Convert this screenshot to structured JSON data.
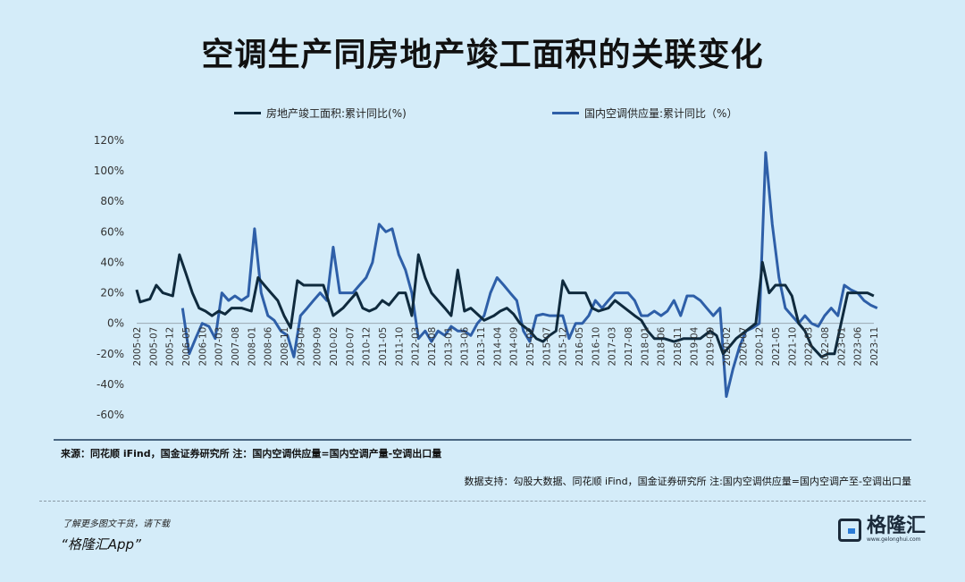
{
  "page_title": "空调生产同房地产竣工面积的关联变化",
  "source_note": "来源：同花顺 iFind，国金证券研究所 注：国内空调供应量=国内空调产量-空调出口量",
  "data_support": "数据支持：勾股大数据、同花顺 iFind，国金证券研究所 注:国内空调供应量=国内空调产至-空调出口量",
  "promo_line1": "了解更多图文干货，请下载",
  "promo_line2": "“格隆汇App”",
  "logo_text": "格隆汇",
  "logo_url": "www.gelonghui.com",
  "colors": {
    "series1": "#0f2a3d",
    "series2": "#2e5fa8",
    "background": "#d4ecf9"
  },
  "chart_data": {
    "type": "line",
    "title": "空调生产同房地产竣工面积的关联变化",
    "ylim": [
      -0.6,
      1.2
    ],
    "y_ticks": [
      "120%",
      "100%",
      "80%",
      "60%",
      "40%",
      "20%",
      "0%",
      "-20%",
      "-40%",
      "-60%"
    ],
    "x_tick_labels": [
      "2005-02",
      "2005-07",
      "2005-12",
      "2006-05",
      "2006-10",
      "2007-03",
      "2007-08",
      "2008-01",
      "2008-06",
      "2008-11",
      "2009-04",
      "2009-09",
      "2010-02",
      "2010-07",
      "2010-12",
      "2011-05",
      "2011-10",
      "2012-03",
      "2012-08",
      "2013-01",
      "2013-06",
      "2013-11",
      "2014-04",
      "2014-09",
      "2015-02",
      "2015-07",
      "2015-12",
      "2016-05",
      "2016-10",
      "2017-03",
      "2017-08",
      "2018-01",
      "2018-06",
      "2018-11",
      "2019-04",
      "2019-09",
      "2020-02",
      "2020-07",
      "2020-12",
      "2021-05",
      "2021-10",
      "2022-03",
      "2022-08",
      "2023-01",
      "2023-06",
      "2023-11"
    ],
    "legend_position": "top",
    "series": [
      {
        "name": "房地产竣工面积:累计同比(%)",
        "points": [
          [
            2005.08,
            0.22
          ],
          [
            2005.17,
            0.14
          ],
          [
            2005.42,
            0.16
          ],
          [
            2005.58,
            0.25
          ],
          [
            2005.75,
            0.2
          ],
          [
            2006.0,
            0.18
          ],
          [
            2006.17,
            0.45
          ],
          [
            2006.33,
            0.33
          ],
          [
            2006.5,
            0.2
          ],
          [
            2006.67,
            0.1
          ],
          [
            2006.83,
            0.08
          ],
          [
            2007.0,
            0.05
          ],
          [
            2007.17,
            0.08
          ],
          [
            2007.33,
            0.06
          ],
          [
            2007.5,
            0.1
          ],
          [
            2007.75,
            0.1
          ],
          [
            2008.0,
            0.08
          ],
          [
            2008.17,
            0.3
          ],
          [
            2008.33,
            0.25
          ],
          [
            2008.5,
            0.2
          ],
          [
            2008.67,
            0.15
          ],
          [
            2008.83,
            0.05
          ],
          [
            2009.0,
            -0.03
          ],
          [
            2009.17,
            0.28
          ],
          [
            2009.33,
            0.25
          ],
          [
            2009.5,
            0.25
          ],
          [
            2009.67,
            0.25
          ],
          [
            2009.83,
            0.25
          ],
          [
            2010.08,
            0.05
          ],
          [
            2010.33,
            0.1
          ],
          [
            2010.5,
            0.15
          ],
          [
            2010.67,
            0.2
          ],
          [
            2010.83,
            0.1
          ],
          [
            2011.0,
            0.08
          ],
          [
            2011.17,
            0.1
          ],
          [
            2011.33,
            0.15
          ],
          [
            2011.5,
            0.12
          ],
          [
            2011.75,
            0.2
          ],
          [
            2011.92,
            0.2
          ],
          [
            2012.08,
            0.05
          ],
          [
            2012.25,
            0.45
          ],
          [
            2012.42,
            0.3
          ],
          [
            2012.58,
            0.2
          ],
          [
            2012.75,
            0.15
          ],
          [
            2012.92,
            0.1
          ],
          [
            2013.08,
            0.05
          ],
          [
            2013.25,
            0.35
          ],
          [
            2013.42,
            0.08
          ],
          [
            2013.58,
            0.1
          ],
          [
            2013.75,
            0.06
          ],
          [
            2013.92,
            0.02
          ],
          [
            2014.17,
            0.05
          ],
          [
            2014.33,
            0.08
          ],
          [
            2014.5,
            0.1
          ],
          [
            2014.67,
            0.06
          ],
          [
            2014.83,
            0.0
          ],
          [
            2015.08,
            -0.05
          ],
          [
            2015.25,
            -0.1
          ],
          [
            2015.42,
            -0.12
          ],
          [
            2015.58,
            -0.08
          ],
          [
            2015.75,
            -0.05
          ],
          [
            2015.92,
            0.28
          ],
          [
            2016.08,
            0.2
          ],
          [
            2016.25,
            0.2
          ],
          [
            2016.5,
            0.2
          ],
          [
            2016.67,
            0.1
          ],
          [
            2016.83,
            0.08
          ],
          [
            2017.08,
            0.1
          ],
          [
            2017.25,
            0.15
          ],
          [
            2017.5,
            0.1
          ],
          [
            2017.75,
            0.05
          ],
          [
            2017.92,
            0.02
          ],
          [
            2018.08,
            -0.05
          ],
          [
            2018.25,
            -0.1
          ],
          [
            2018.5,
            -0.1
          ],
          [
            2018.75,
            -0.12
          ],
          [
            2019.0,
            -0.1
          ],
          [
            2019.17,
            -0.1
          ],
          [
            2019.42,
            -0.1
          ],
          [
            2019.67,
            -0.05
          ],
          [
            2019.83,
            -0.08
          ],
          [
            2020.0,
            -0.2
          ],
          [
            2020.17,
            -0.15
          ],
          [
            2020.33,
            -0.1
          ],
          [
            2020.58,
            -0.05
          ],
          [
            2020.83,
            0.0
          ],
          [
            2021.0,
            0.4
          ],
          [
            2021.17,
            0.2
          ],
          [
            2021.33,
            0.25
          ],
          [
            2021.58,
            0.25
          ],
          [
            2021.75,
            0.18
          ],
          [
            2021.92,
            0.0
          ],
          [
            2022.08,
            -0.05
          ],
          [
            2022.25,
            -0.15
          ],
          [
            2022.5,
            -0.22
          ],
          [
            2022.67,
            -0.2
          ],
          [
            2022.83,
            -0.2
          ],
          [
            2023.0,
            0.0
          ],
          [
            2023.17,
            0.2
          ],
          [
            2023.42,
            0.2
          ],
          [
            2023.67,
            0.2
          ],
          [
            2023.83,
            0.18
          ]
        ]
      },
      {
        "name": "国内空调供应量:累计同比（%）",
        "points": [
          [
            2006.25,
            0.1
          ],
          [
            2006.42,
            -0.2
          ],
          [
            2006.58,
            -0.1
          ],
          [
            2006.75,
            0.0
          ],
          [
            2006.92,
            -0.02
          ],
          [
            2007.08,
            -0.1
          ],
          [
            2007.25,
            0.2
          ],
          [
            2007.42,
            0.15
          ],
          [
            2007.58,
            0.18
          ],
          [
            2007.75,
            0.15
          ],
          [
            2007.92,
            0.18
          ],
          [
            2008.08,
            0.62
          ],
          [
            2008.25,
            0.2
          ],
          [
            2008.42,
            0.05
          ],
          [
            2008.58,
            0.02
          ],
          [
            2008.75,
            -0.05
          ],
          [
            2008.92,
            -0.08
          ],
          [
            2009.08,
            -0.22
          ],
          [
            2009.25,
            0.05
          ],
          [
            2009.42,
            0.1
          ],
          [
            2009.58,
            0.15
          ],
          [
            2009.75,
            0.2
          ],
          [
            2009.92,
            0.15
          ],
          [
            2010.08,
            0.5
          ],
          [
            2010.25,
            0.2
          ],
          [
            2010.42,
            0.2
          ],
          [
            2010.58,
            0.2
          ],
          [
            2010.75,
            0.25
          ],
          [
            2010.92,
            0.3
          ],
          [
            2011.08,
            0.4
          ],
          [
            2011.25,
            0.65
          ],
          [
            2011.42,
            0.6
          ],
          [
            2011.58,
            0.62
          ],
          [
            2011.75,
            0.45
          ],
          [
            2011.92,
            0.35
          ],
          [
            2012.08,
            0.2
          ],
          [
            2012.25,
            -0.1
          ],
          [
            2012.42,
            -0.05
          ],
          [
            2012.58,
            -0.12
          ],
          [
            2012.75,
            -0.05
          ],
          [
            2012.92,
            -0.08
          ],
          [
            2013.08,
            -0.02
          ],
          [
            2013.25,
            -0.05
          ],
          [
            2013.42,
            -0.05
          ],
          [
            2013.58,
            -0.08
          ],
          [
            2013.75,
            0.0
          ],
          [
            2013.92,
            0.05
          ],
          [
            2014.08,
            0.2
          ],
          [
            2014.25,
            0.3
          ],
          [
            2014.42,
            0.25
          ],
          [
            2014.58,
            0.2
          ],
          [
            2014.75,
            0.15
          ],
          [
            2014.92,
            -0.05
          ],
          [
            2015.08,
            -0.12
          ],
          [
            2015.25,
            0.05
          ],
          [
            2015.42,
            0.06
          ],
          [
            2015.58,
            0.05
          ],
          [
            2015.75,
            0.05
          ],
          [
            2015.92,
            0.05
          ],
          [
            2016.08,
            -0.1
          ],
          [
            2016.25,
            0.0
          ],
          [
            2016.42,
            0.0
          ],
          [
            2016.58,
            0.05
          ],
          [
            2016.75,
            0.15
          ],
          [
            2016.92,
            0.1
          ],
          [
            2017.08,
            0.15
          ],
          [
            2017.25,
            0.2
          ],
          [
            2017.42,
            0.2
          ],
          [
            2017.58,
            0.2
          ],
          [
            2017.75,
            0.15
          ],
          [
            2017.92,
            0.05
          ],
          [
            2018.08,
            0.05
          ],
          [
            2018.25,
            0.08
          ],
          [
            2018.42,
            0.05
          ],
          [
            2018.58,
            0.08
          ],
          [
            2018.75,
            0.15
          ],
          [
            2018.92,
            0.05
          ],
          [
            2019.08,
            0.18
          ],
          [
            2019.25,
            0.18
          ],
          [
            2019.42,
            0.15
          ],
          [
            2019.58,
            0.1
          ],
          [
            2019.75,
            0.05
          ],
          [
            2019.92,
            0.1
          ],
          [
            2020.08,
            -0.48
          ],
          [
            2020.25,
            -0.3
          ],
          [
            2020.42,
            -0.15
          ],
          [
            2020.58,
            -0.05
          ],
          [
            2020.75,
            -0.03
          ],
          [
            2020.92,
            0.0
          ],
          [
            2021.08,
            1.12
          ],
          [
            2021.25,
            0.65
          ],
          [
            2021.42,
            0.3
          ],
          [
            2021.58,
            0.1
          ],
          [
            2021.75,
            0.05
          ],
          [
            2021.92,
            0.0
          ],
          [
            2022.08,
            0.05
          ],
          [
            2022.25,
            0.0
          ],
          [
            2022.42,
            -0.02
          ],
          [
            2022.58,
            0.05
          ],
          [
            2022.75,
            0.1
          ],
          [
            2022.92,
            0.05
          ],
          [
            2023.08,
            0.25
          ],
          [
            2023.25,
            0.22
          ],
          [
            2023.42,
            0.2
          ],
          [
            2023.58,
            0.15
          ],
          [
            2023.75,
            0.12
          ],
          [
            2023.92,
            0.1
          ]
        ]
      }
    ]
  }
}
